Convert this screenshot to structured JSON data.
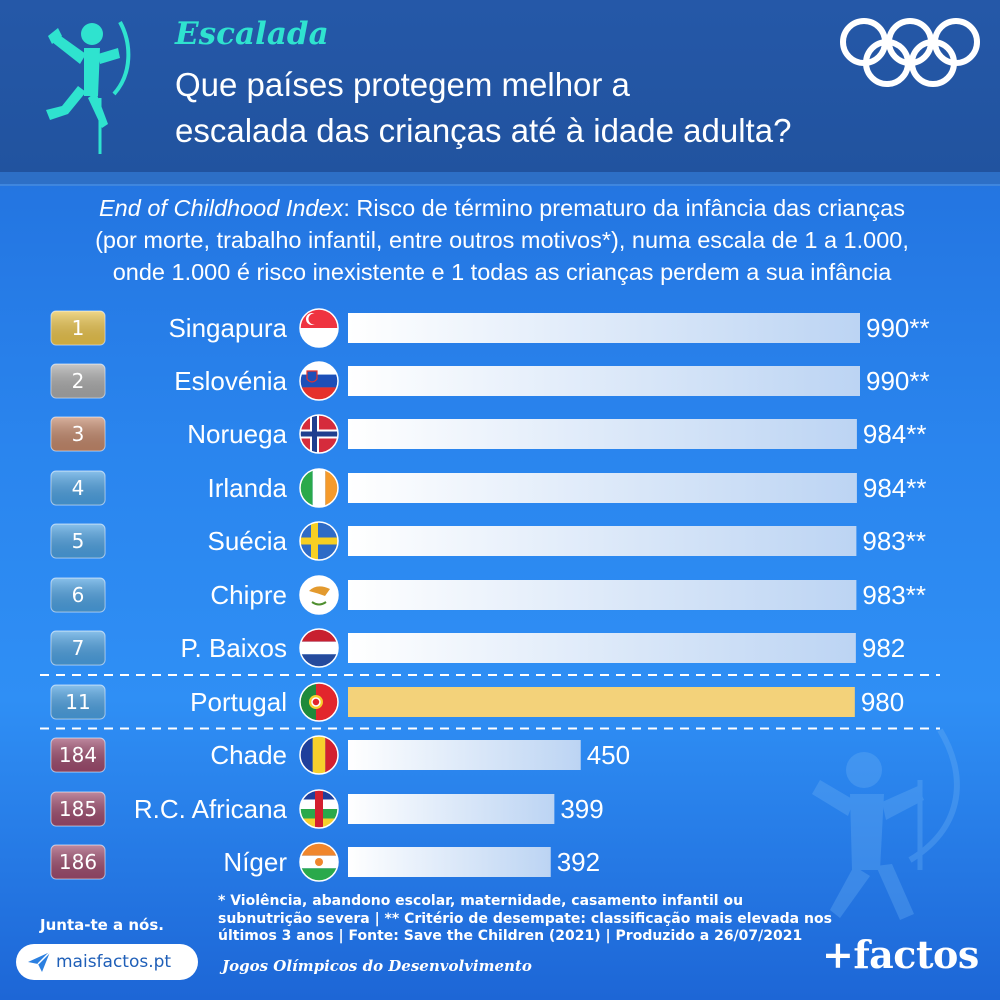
{
  "header": {
    "sport_title": "Escalada",
    "headline_line1": "Que países protegem melhor a",
    "headline_line2": "escalada das crianças até à idade adulta?"
  },
  "subtitle": {
    "index_name": "End of Childhood Index",
    "line1_rest": ": Risco de término prematuro da infância das crianças",
    "line2": "(por morte, trabalho infantil, entre outros motivos*), numa escala de 1 a 1.000,",
    "line3": "onde 1.000 é risco inexistente e 1 todas as crianças perdem a sua infância"
  },
  "chart_data": {
    "type": "bar",
    "orientation": "horizontal",
    "value_min": 0,
    "value_max": 1000,
    "rows": [
      {
        "rank": "1",
        "country": "Singapura",
        "value": 990,
        "label": "990**",
        "badge": "gold",
        "flag": "singapore-flag"
      },
      {
        "rank": "2",
        "country": "Eslovénia",
        "value": 990,
        "label": "990**",
        "badge": "silver",
        "flag": "slovenia-flag"
      },
      {
        "rank": "3",
        "country": "Noruega",
        "value": 984,
        "label": "984**",
        "badge": "bronze",
        "flag": "norway-flag"
      },
      {
        "rank": "4",
        "country": "Irlanda",
        "value": 984,
        "label": "984**",
        "badge": "blue",
        "flag": "ireland-flag"
      },
      {
        "rank": "5",
        "country": "Suécia",
        "value": 983,
        "label": "983**",
        "badge": "blue",
        "flag": "sweden-flag"
      },
      {
        "rank": "6",
        "country": "Chipre",
        "value": 983,
        "label": "983**",
        "badge": "blue",
        "flag": "cyprus-flag"
      },
      {
        "rank": "7",
        "country": "P. Baixos",
        "value": 982,
        "label": "982",
        "badge": "blue",
        "flag": "netherlands-flag"
      },
      {
        "rank": "11",
        "country": "Portugal",
        "value": 980,
        "label": "980",
        "badge": "blue",
        "flag": "portugal-flag",
        "highlight": true
      },
      {
        "rank": "184",
        "country": "Chade",
        "value": 450,
        "label": "450",
        "badge": "red",
        "flag": "chad-flag"
      },
      {
        "rank": "185",
        "country": "R.C. Africana",
        "value": 399,
        "label": "399",
        "badge": "red",
        "flag": "central-african-republic-flag"
      },
      {
        "rank": "186",
        "country": "Níger",
        "value": 392,
        "label": "392",
        "badge": "red",
        "flag": "niger-flag"
      }
    ],
    "colors": {
      "bar_gradient_start": "#ffffff",
      "bar_gradient_end": "#bcd4f3",
      "highlight_bar": "#f3d27a",
      "highlight_text": "#f6d77a",
      "badge_gold": "#e8c24a",
      "badge_silver": "#a9a9a9",
      "badge_bronze": "#c2876a",
      "badge_blue": "#4a9fe0",
      "badge_red": "#9c4a6c"
    }
  },
  "footer": {
    "footnote_line1": "* Violência, abandono escolar, maternidade, casamento infantil ou",
    "footnote_line2": "subnutrição severa | ** Critério de desempate: classificação mais elevada nos",
    "footnote_line3": "últimos 3 anos | Fonte: Save the Children (2021) | Produzido a 26/07/2021",
    "event_name": "Jogos Olímpicos do Desenvolvimento",
    "join_text": "Junta-te a nós.",
    "site": "maisfactos.pt",
    "brand": "+factos"
  },
  "icons": {
    "climber": "climber-icon",
    "rings": "olympic-rings-icon",
    "plane": "paper-plane-icon"
  }
}
